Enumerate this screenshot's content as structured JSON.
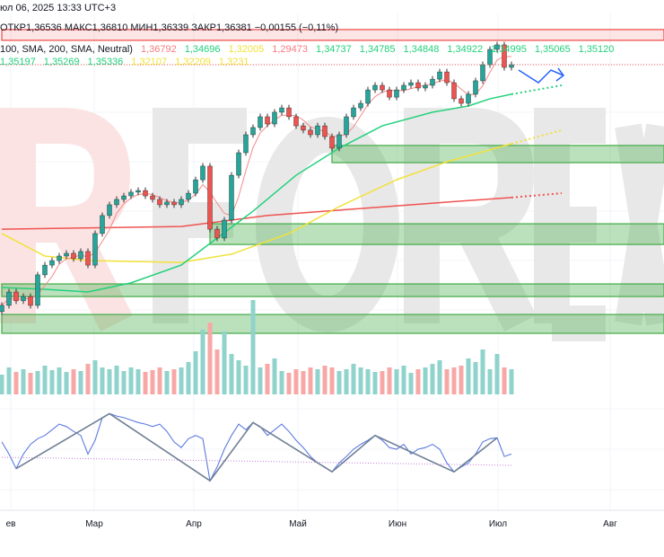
{
  "header": {
    "datetime": "юл 06, 2025 13:33 UTC+3",
    "ohlc": "ОТКР1,36536  МАКС1,36810  МИН1,36339  ЗАКР1,36381  −0,00155 (−0,11%)",
    "indicator": "100, SMA, 200, SMA, Neutral)",
    "indicator_values": [
      {
        "text": "1,36792",
        "color": "#f77c80"
      },
      {
        "text": "1,34696",
        "color": "#22d17b"
      },
      {
        "text": "1,32005",
        "color": "#f2e13a"
      },
      {
        "text": "1,29473",
        "color": "#f77c80"
      },
      {
        "text": "1,34737",
        "color": "#22d17b"
      },
      {
        "text": "1,34785",
        "color": "#22d17b"
      },
      {
        "text": "1,34848",
        "color": "#22d17b"
      },
      {
        "text": "1,34922",
        "color": "#22d17b"
      },
      {
        "text": "1,34995",
        "color": "#22d17b"
      },
      {
        "text": "1,35065",
        "color": "#22d17b"
      },
      {
        "text": "1,35120",
        "color": "#22d17b"
      },
      {
        "text": "1,35197",
        "color": "#22d17b"
      },
      {
        "text": "1,35269",
        "color": "#22d17b"
      },
      {
        "text": "1,35336",
        "color": "#22d17b"
      },
      {
        "text": "1,32107",
        "color": "#f2e13a"
      },
      {
        "text": "1,32209",
        "color": "#f2e13a"
      },
      {
        "text": "1,3231",
        "color": "#f2e13a"
      }
    ]
  },
  "watermark": "RFOREX.com",
  "colors": {
    "up": "#26a69a",
    "down": "#ef5350",
    "sma50": "#22d17b",
    "sma100": "#f2e13a",
    "sma200": "#ef5350",
    "rsi": "#5b7be0",
    "zone": "#4caf50",
    "projection": "#2962ff"
  },
  "chart_data": {
    "type": "candlestick",
    "x_labels": [
      "ев",
      "Мар",
      "Апр",
      "Май",
      "Июн",
      "Июл",
      "Авг"
    ],
    "closes": [
      1.2473,
      1.2538,
      1.2495,
      1.2516,
      1.2473,
      1.2621,
      1.2668,
      1.269,
      1.2712,
      1.2725,
      1.2699,
      1.2734,
      1.2668,
      1.2821,
      1.2908,
      1.296,
      1.2986,
      1.3003,
      1.3021,
      1.3029,
      1.3003,
      1.2986,
      1.296,
      1.2973,
      1.296,
      1.2986,
      1.3016,
      1.3081,
      1.3147,
      1.2842,
      1.2799,
      1.2886,
      1.3103,
      1.3212,
      1.3299,
      1.3334,
      1.3386,
      1.3351,
      1.3408,
      1.3429,
      1.3386,
      1.3342,
      1.3321,
      1.3299,
      1.3342,
      1.329,
      1.3234,
      1.3299,
      1.3386,
      1.3429,
      1.3451,
      1.3516,
      1.3538,
      1.3516,
      1.3481,
      1.3516,
      1.3538,
      1.3551,
      1.3525,
      1.3538,
      1.3568,
      1.3603,
      1.3551,
      1.3473,
      1.3451,
      1.3495,
      1.356,
      1.3638,
      1.3712,
      1.3734,
      1.3625,
      1.3638
    ],
    "last": {
      "open": 1.36536,
      "high": 1.3681,
      "low": 1.36339,
      "close": 1.36381
    },
    "sma50": [
      [
        0,
        1.256
      ],
      [
        6,
        1.2551
      ],
      [
        12,
        1.2538
      ],
      [
        18,
        1.2582
      ],
      [
        25,
        1.2668
      ],
      [
        30,
        1.2799
      ],
      [
        35,
        1.2929
      ],
      [
        41,
        1.3103
      ],
      [
        47,
        1.3234
      ],
      [
        53,
        1.3342
      ],
      [
        60,
        1.3408
      ],
      [
        65,
        1.3438
      ],
      [
        68,
        1.3473
      ],
      [
        71,
        1.3495
      ]
    ],
    "sma50_projection": [
      [
        71,
        1.3495
      ],
      [
        78,
        1.3538
      ]
    ],
    "sma100": [
      [
        0,
        1.2821
      ],
      [
        6,
        1.2712
      ],
      [
        12,
        1.269
      ],
      [
        25,
        1.2681
      ],
      [
        32,
        1.2721
      ],
      [
        40,
        1.2821
      ],
      [
        47,
        1.2951
      ],
      [
        55,
        1.3081
      ],
      [
        62,
        1.3168
      ],
      [
        71,
        1.3255
      ]
    ],
    "sma100_projection": [
      [
        71,
        1.3255
      ],
      [
        78,
        1.3321
      ]
    ],
    "sma200": [
      [
        0,
        1.2842
      ],
      [
        25,
        1.2855
      ],
      [
        37,
        1.2908
      ],
      [
        50,
        1.2942
      ],
      [
        62,
        1.2973
      ],
      [
        71,
        1.2995
      ]
    ],
    "sma200_projection": [
      [
        71,
        1.2995
      ],
      [
        78,
        1.3016
      ]
    ],
    "zones": [
      {
        "type": "resistance",
        "from_index": 0,
        "top": 1.3808,
        "bottom": 1.3756
      },
      {
        "type": "support",
        "from_index": 46,
        "top": 1.3247,
        "bottom": 1.3164
      },
      {
        "type": "support",
        "from_index": 29,
        "top": 1.2868,
        "bottom": 1.2768
      },
      {
        "type": "support",
        "from_index": 0,
        "top": 1.2577,
        "bottom": 1.2516
      },
      {
        "type": "support",
        "from_index": 0,
        "top": 1.2429,
        "bottom": 1.2338
      }
    ],
    "volume": [
      22,
      30,
      25,
      28,
      24,
      26,
      32,
      27,
      30,
      25,
      28,
      26,
      34,
      38,
      30,
      28,
      32,
      26,
      30,
      28,
      25,
      27,
      30,
      26,
      28,
      30,
      36,
      48,
      72,
      80,
      50,
      70,
      45,
      38,
      32,
      105,
      30,
      34,
      40,
      26,
      24,
      28,
      26,
      30,
      28,
      32,
      30,
      26,
      28,
      34,
      30,
      28,
      25,
      26,
      30,
      28,
      32,
      24,
      28,
      30,
      34,
      38,
      28,
      30,
      32,
      40,
      36,
      50,
      28,
      45,
      30,
      28
    ],
    "rsi": [
      59,
      44,
      26,
      44,
      56,
      63,
      67,
      74,
      81,
      78,
      72,
      67,
      44,
      61,
      89,
      94,
      91,
      89,
      86,
      83,
      81,
      78,
      81,
      72,
      59,
      52,
      63,
      67,
      63,
      11,
      28,
      50,
      67,
      81,
      74,
      83,
      78,
      67,
      74,
      81,
      72,
      61,
      52,
      41,
      33,
      28,
      22,
      33,
      41,
      50,
      56,
      61,
      67,
      61,
      52,
      50,
      56,
      44,
      50,
      52,
      56,
      50,
      33,
      22,
      28,
      33,
      44,
      59,
      63,
      64,
      41,
      44
    ]
  }
}
